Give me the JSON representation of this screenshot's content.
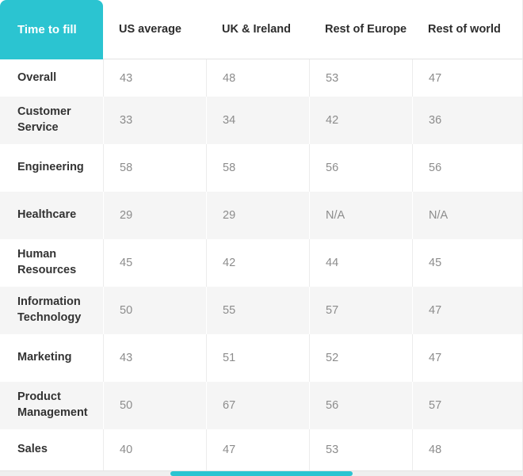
{
  "chart_data": {
    "type": "table",
    "corner_header": "Time to fill",
    "columns": [
      "US average",
      "UK & Ireland",
      "Rest of Europe",
      "Rest of world"
    ],
    "rows": [
      {
        "label": "Overall",
        "values": [
          43,
          48,
          53,
          47
        ]
      },
      {
        "label": "Customer Service",
        "values": [
          33,
          34,
          42,
          36
        ]
      },
      {
        "label": "Engineering",
        "values": [
          58,
          58,
          56,
          56
        ]
      },
      {
        "label": "Healthcare",
        "values": [
          29,
          29,
          "N/A",
          "N/A"
        ]
      },
      {
        "label": "Human Resources",
        "values": [
          45,
          42,
          44,
          45
        ]
      },
      {
        "label": "Information Technology",
        "values": [
          50,
          55,
          57,
          47
        ]
      },
      {
        "label": "Marketing",
        "values": [
          43,
          51,
          52,
          47
        ]
      },
      {
        "label": "Product Management",
        "values": [
          50,
          67,
          56,
          57
        ]
      },
      {
        "label": "Sales",
        "values": [
          40,
          47,
          53,
          48
        ]
      }
    ]
  },
  "colors": {
    "accent_teal": "#2BC4D1",
    "row_stripe": "#f5f5f5",
    "header_text": "#2d2d2d",
    "label_text": "#333333",
    "value_text": "#8c8c8c",
    "border": "#ececec",
    "scrollbar_track": "#efefef"
  }
}
